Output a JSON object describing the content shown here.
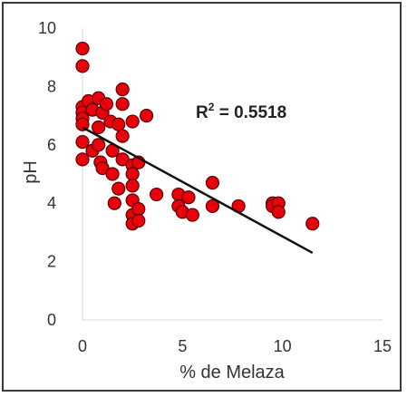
{
  "chart_data": {
    "type": "scatter",
    "title": "",
    "xlabel": "% de Melaza",
    "ylabel": "pH",
    "xlim": [
      0,
      15
    ],
    "ylim": [
      0,
      10
    ],
    "x_ticks": [
      "0",
      "5",
      "10",
      "15"
    ],
    "y_ticks": [
      "0",
      "2",
      "4",
      "6",
      "8",
      "10"
    ],
    "grid": false,
    "point_color": "#e8000b",
    "point_edge_color": "#5a0000",
    "trendline": {
      "type": "linear",
      "x": [
        0,
        11.5
      ],
      "y": [
        6.6,
        2.3
      ],
      "color": "#111111"
    },
    "annotation": {
      "r2_label": "R",
      "r2_sup": "2",
      "r2_value": " = 0.5518"
    },
    "points": [
      {
        "x": 0.0,
        "y": 9.3
      },
      {
        "x": 0.0,
        "y": 8.7
      },
      {
        "x": 0.0,
        "y": 7.3
      },
      {
        "x": 0.0,
        "y": 7.1
      },
      {
        "x": 0.0,
        "y": 6.9
      },
      {
        "x": 0.0,
        "y": 6.7
      },
      {
        "x": 0.0,
        "y": 6.1
      },
      {
        "x": 0.0,
        "y": 5.5
      },
      {
        "x": 0.3,
        "y": 7.5
      },
      {
        "x": 0.5,
        "y": 7.2
      },
      {
        "x": 0.5,
        "y": 5.8
      },
      {
        "x": 0.8,
        "y": 7.6
      },
      {
        "x": 0.8,
        "y": 6.6
      },
      {
        "x": 0.8,
        "y": 6.0
      },
      {
        "x": 0.9,
        "y": 5.4
      },
      {
        "x": 1.0,
        "y": 7.1
      },
      {
        "x": 1.0,
        "y": 5.2
      },
      {
        "x": 1.2,
        "y": 7.4
      },
      {
        "x": 1.4,
        "y": 6.8
      },
      {
        "x": 1.5,
        "y": 5.8
      },
      {
        "x": 1.5,
        "y": 5.0
      },
      {
        "x": 1.6,
        "y": 4.0
      },
      {
        "x": 1.8,
        "y": 6.7
      },
      {
        "x": 1.8,
        "y": 4.5
      },
      {
        "x": 2.0,
        "y": 7.9
      },
      {
        "x": 2.0,
        "y": 7.4
      },
      {
        "x": 2.0,
        "y": 6.3
      },
      {
        "x": 2.0,
        "y": 5.5
      },
      {
        "x": 2.5,
        "y": 6.8
      },
      {
        "x": 2.5,
        "y": 5.3
      },
      {
        "x": 2.5,
        "y": 5.0
      },
      {
        "x": 2.5,
        "y": 4.6
      },
      {
        "x": 2.5,
        "y": 4.1
      },
      {
        "x": 2.5,
        "y": 3.6
      },
      {
        "x": 2.5,
        "y": 3.3
      },
      {
        "x": 2.8,
        "y": 5.4
      },
      {
        "x": 2.8,
        "y": 3.8
      },
      {
        "x": 2.8,
        "y": 3.4
      },
      {
        "x": 3.2,
        "y": 7.0
      },
      {
        "x": 3.7,
        "y": 4.3
      },
      {
        "x": 4.8,
        "y": 4.3
      },
      {
        "x": 4.8,
        "y": 3.9
      },
      {
        "x": 5.0,
        "y": 3.7
      },
      {
        "x": 5.3,
        "y": 4.2
      },
      {
        "x": 5.5,
        "y": 3.6
      },
      {
        "x": 6.5,
        "y": 4.7
      },
      {
        "x": 6.5,
        "y": 3.9
      },
      {
        "x": 7.8,
        "y": 3.9
      },
      {
        "x": 9.5,
        "y": 4.0
      },
      {
        "x": 9.5,
        "y": 3.9
      },
      {
        "x": 9.8,
        "y": 4.0
      },
      {
        "x": 9.8,
        "y": 3.7
      },
      {
        "x": 11.5,
        "y": 3.3
      }
    ]
  }
}
